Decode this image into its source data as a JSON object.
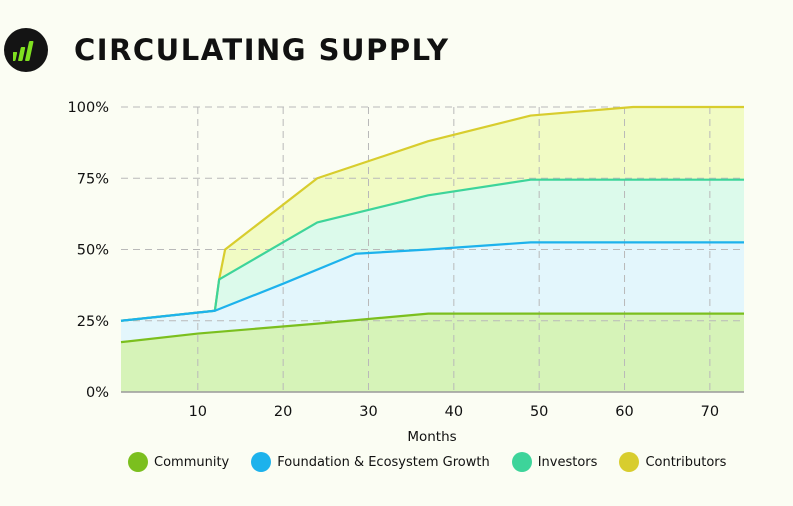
{
  "header": {
    "title": "CIRCULATING SUPPLY",
    "logo_icon": "rising-bars-icon"
  },
  "chart_data": {
    "type": "area",
    "title": "CIRCULATING SUPPLY",
    "xlabel": "Months",
    "ylabel": "",
    "xlim": [
      1,
      74
    ],
    "ylim": [
      0,
      100
    ],
    "x_ticks": [
      10,
      20,
      30,
      40,
      50,
      60,
      70
    ],
    "y_ticks": [
      "0%",
      "25%",
      "50%",
      "75%",
      "100%"
    ],
    "y_tick_values": [
      0,
      25,
      50,
      75,
      100
    ],
    "grid": true,
    "stacked_cumulative": true,
    "legend_position": "bottom",
    "series": [
      {
        "name": "Community",
        "color": "#7bbf1e",
        "fill": "#d6f3b8",
        "points": [
          [
            1,
            17.5
          ],
          [
            10,
            20.5
          ],
          [
            24,
            24
          ],
          [
            37,
            27.5
          ],
          [
            74,
            27.5
          ]
        ]
      },
      {
        "name": "Foundation & Ecosystem Growth",
        "color": "#1db2ec",
        "fill": "#e3f6fc",
        "points": [
          [
            1,
            25
          ],
          [
            12,
            28.5
          ],
          [
            20,
            38
          ],
          [
            28.5,
            48.5
          ],
          [
            37,
            50
          ],
          [
            49,
            52.5
          ],
          [
            74,
            52.5
          ]
        ]
      },
      {
        "name": "Investors",
        "color": "#3dd49a",
        "fill": "#dcfaeb",
        "points": [
          [
            1,
            25
          ],
          [
            12,
            28.5
          ],
          [
            12.5,
            39.5
          ],
          [
            24,
            59.5
          ],
          [
            37,
            69
          ],
          [
            49,
            74.5
          ],
          [
            74,
            74.5
          ]
        ]
      },
      {
        "name": "Contributors",
        "color": "#d8cd2e",
        "fill": "#f1fbc4",
        "points": [
          [
            1,
            25
          ],
          [
            12,
            28.5
          ],
          [
            12.5,
            39.5
          ],
          [
            13.2,
            50
          ],
          [
            24,
            75
          ],
          [
            37,
            88
          ],
          [
            49,
            97
          ],
          [
            61,
            100
          ],
          [
            74,
            100
          ]
        ]
      }
    ]
  }
}
